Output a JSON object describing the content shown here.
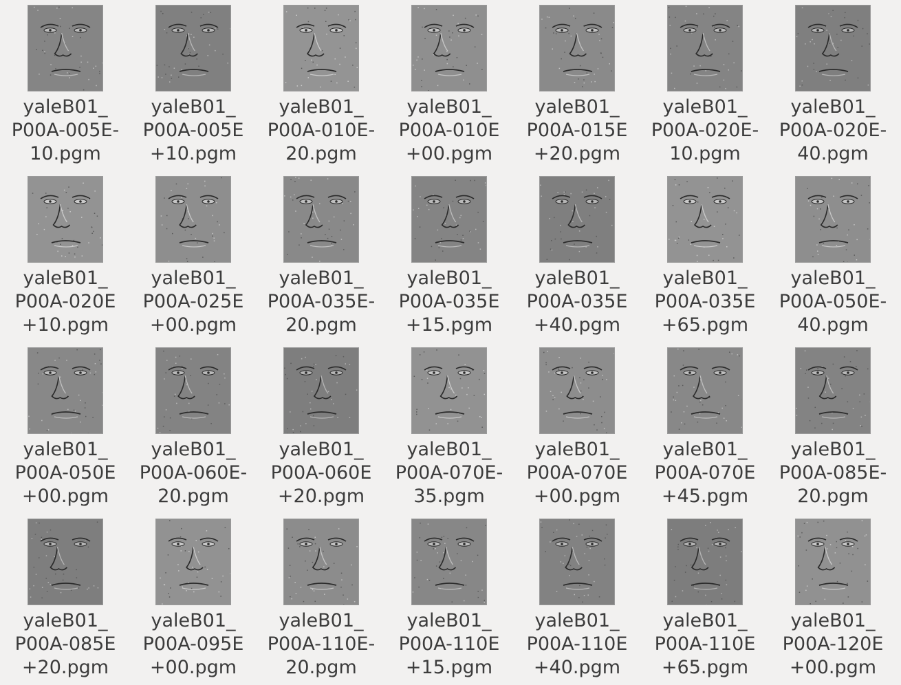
{
  "file_browser": {
    "items": [
      {
        "label": "yaleB01_\nP00A-005E-\n10.pgm",
        "name": "yaleB01_P00A-005E-10.pgm"
      },
      {
        "label": "yaleB01_\nP00A-005E\n+10.pgm",
        "name": "yaleB01_P00A-005E+10.pgm"
      },
      {
        "label": "yaleB01_\nP00A-010E-\n20.pgm",
        "name": "yaleB01_P00A-010E-20.pgm"
      },
      {
        "label": "yaleB01_\nP00A-010E\n+00.pgm",
        "name": "yaleB01_P00A-010E+00.pgm"
      },
      {
        "label": "yaleB01_\nP00A-015E\n+20.pgm",
        "name": "yaleB01_P00A-015E+20.pgm"
      },
      {
        "label": "yaleB01_\nP00A-020E-\n10.pgm",
        "name": "yaleB01_P00A-020E-10.pgm"
      },
      {
        "label": "yaleB01_\nP00A-020E-\n40.pgm",
        "name": "yaleB01_P00A-020E-40.pgm"
      },
      {
        "label": "yaleB01_\nP00A-020E\n+10.pgm",
        "name": "yaleB01_P00A-020E+10.pgm"
      },
      {
        "label": "yaleB01_\nP00A-025E\n+00.pgm",
        "name": "yaleB01_P00A-025E+00.pgm"
      },
      {
        "label": "yaleB01_\nP00A-035E-\n20.pgm",
        "name": "yaleB01_P00A-035E-20.pgm"
      },
      {
        "label": "yaleB01_\nP00A-035E\n+15.pgm",
        "name": "yaleB01_P00A-035E+15.pgm"
      },
      {
        "label": "yaleB01_\nP00A-035E\n+40.pgm",
        "name": "yaleB01_P00A-035E+40.pgm"
      },
      {
        "label": "yaleB01_\nP00A-035E\n+65.pgm",
        "name": "yaleB01_P00A-035E+65.pgm"
      },
      {
        "label": "yaleB01_\nP00A-050E-\n40.pgm",
        "name": "yaleB01_P00A-050E-40.pgm"
      },
      {
        "label": "yaleB01_\nP00A-050E\n+00.pgm",
        "name": "yaleB01_P00A-050E+00.pgm"
      },
      {
        "label": "yaleB01_\nP00A-060E-\n20.pgm",
        "name": "yaleB01_P00A-060E-20.pgm"
      },
      {
        "label": "yaleB01_\nP00A-060E\n+20.pgm",
        "name": "yaleB01_P00A-060E+20.pgm"
      },
      {
        "label": "yaleB01_\nP00A-070E-\n35.pgm",
        "name": "yaleB01_P00A-070E-35.pgm"
      },
      {
        "label": "yaleB01_\nP00A-070E\n+00.pgm",
        "name": "yaleB01_P00A-070E+00.pgm"
      },
      {
        "label": "yaleB01_\nP00A-070E\n+45.pgm",
        "name": "yaleB01_P00A-070E+45.pgm"
      },
      {
        "label": "yaleB01_\nP00A-085E-\n20.pgm",
        "name": "yaleB01_P00A-085E-20.pgm"
      },
      {
        "label": "yaleB01_\nP00A-085E\n+20.pgm",
        "name": "yaleB01_P00A-085E+20.pgm"
      },
      {
        "label": "yaleB01_\nP00A-095E\n+00.pgm",
        "name": "yaleB01_P00A-095E+00.pgm"
      },
      {
        "label": "yaleB01_\nP00A-110E-\n20.pgm",
        "name": "yaleB01_P00A-110E-20.pgm"
      },
      {
        "label": "yaleB01_\nP00A-110E\n+15.pgm",
        "name": "yaleB01_P00A-110E+15.pgm"
      },
      {
        "label": "yaleB01_\nP00A-110E\n+40.pgm",
        "name": "yaleB01_P00A-110E+40.pgm"
      },
      {
        "label": "yaleB01_\nP00A-110E\n+65.pgm",
        "name": "yaleB01_P00A-110E+65.pgm"
      },
      {
        "label": "yaleB01_\nP00A-120E\n+00.pgm",
        "name": "yaleB01_P00A-120E+00.pgm"
      }
    ]
  },
  "colors": {
    "background": "#f2f1f0",
    "label_text": "#3c3c3c",
    "thumb_border": "#9a9a9a",
    "thumb_face": "#8a8a8a"
  }
}
